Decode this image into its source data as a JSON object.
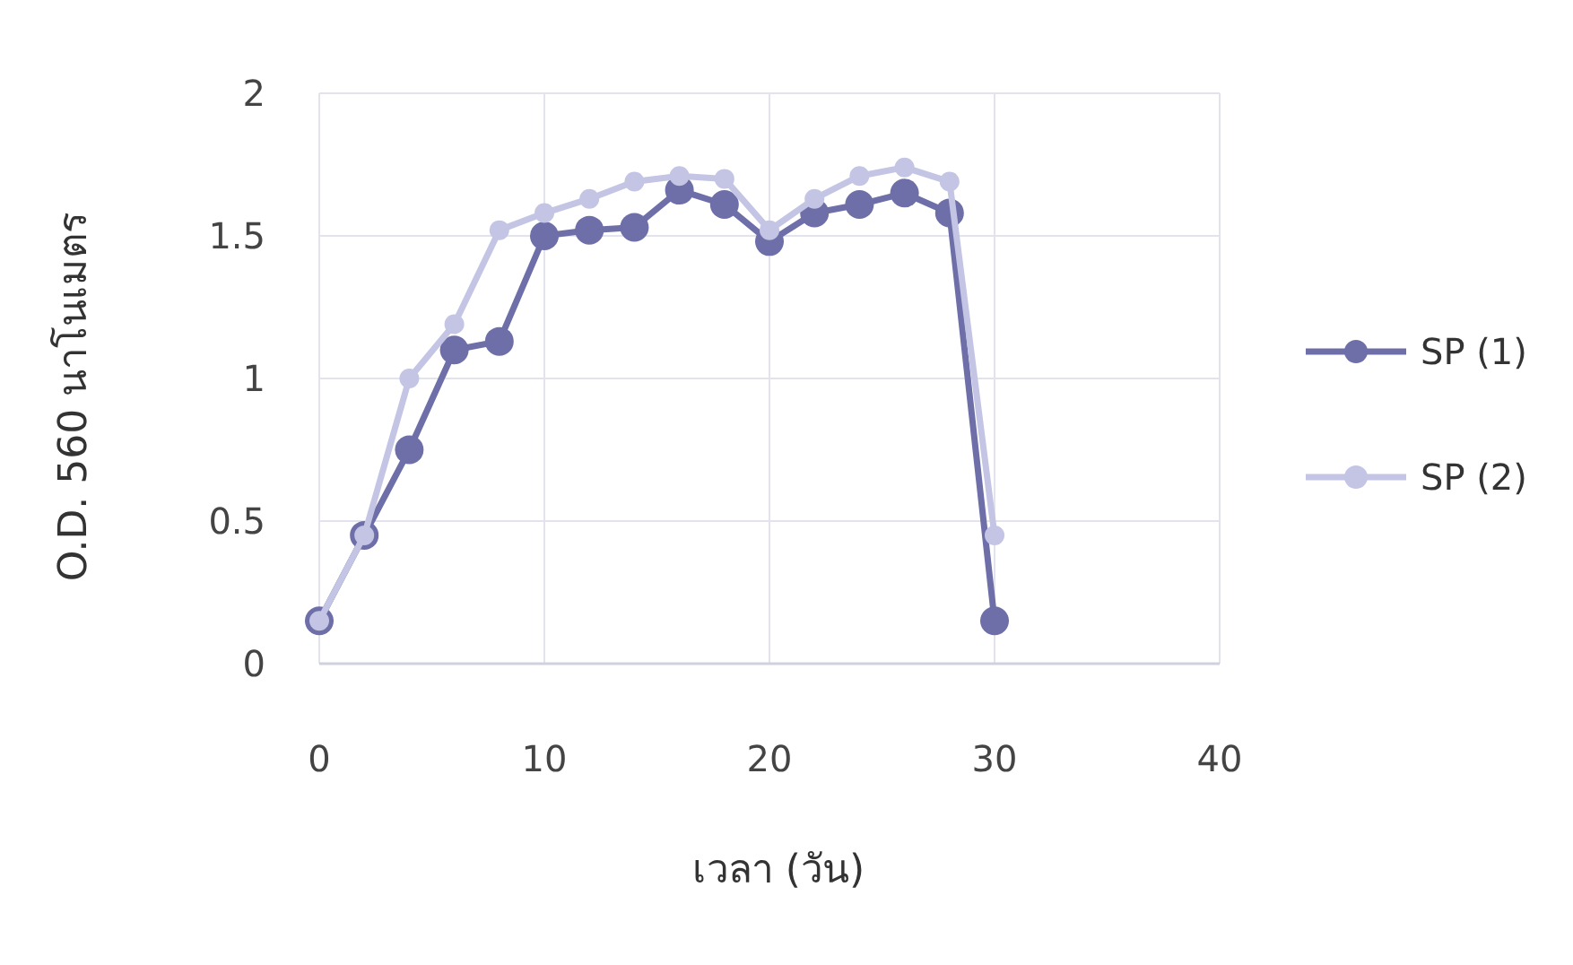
{
  "chart_data": {
    "type": "line",
    "xlabel": "เวลา (วัน)",
    "ylabel": "O.D. 560 นาโนเมตร",
    "xlim": [
      0,
      40
    ],
    "ylim": [
      0,
      2
    ],
    "xticks": [
      0,
      10,
      20,
      30,
      40
    ],
    "yticks": [
      0,
      0.5,
      1,
      1.5,
      2
    ],
    "grid": true,
    "legend": "right",
    "marker": "circle",
    "line_style": "solid",
    "x": [
      0,
      2,
      4,
      6,
      8,
      10,
      12,
      14,
      16,
      18,
      20,
      22,
      24,
      26,
      28,
      30
    ],
    "series": [
      {
        "name": "SP (1)",
        "color": "#6e6ea8",
        "values": [
          0.15,
          0.45,
          0.75,
          1.1,
          1.13,
          1.5,
          1.52,
          1.53,
          1.66,
          1.61,
          1.48,
          1.58,
          1.61,
          1.65,
          1.58,
          0.15
        ]
      },
      {
        "name": "SP (2)",
        "color": "#c4c4e4",
        "values": [
          0.15,
          0.45,
          1.0,
          1.19,
          1.52,
          1.58,
          1.63,
          1.69,
          1.71,
          1.7,
          1.52,
          1.63,
          1.71,
          1.74,
          1.69,
          0.45
        ]
      }
    ]
  }
}
